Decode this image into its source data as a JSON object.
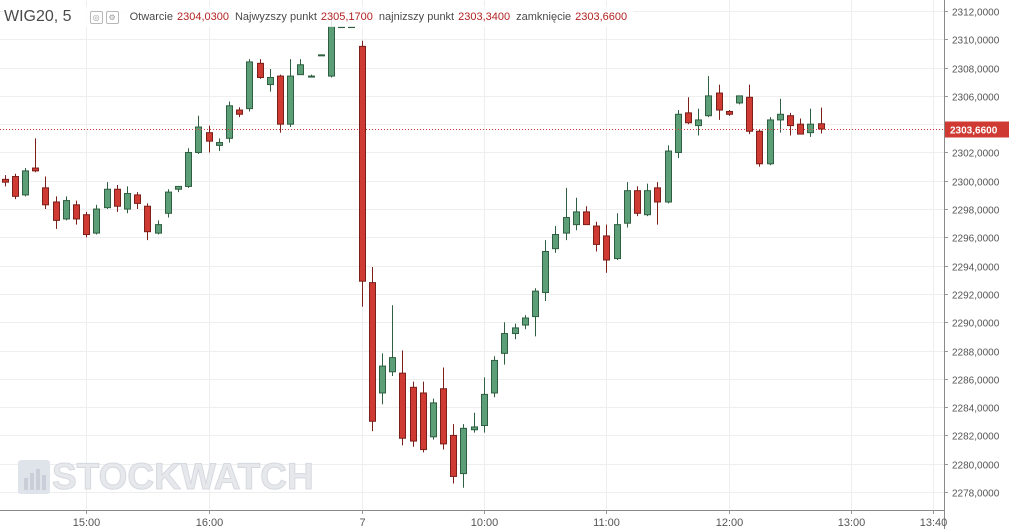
{
  "header": {
    "symbol": "WIG20, 5",
    "open_label": "Otwarcie",
    "open_value": "2304,0300",
    "high_label": "Najwyzszy punkt",
    "high_value": "2305,1700",
    "low_label": "najnizszy punkt",
    "low_value": "2303,3400",
    "close_label": "zamknięcie",
    "close_value": "2303,6600"
  },
  "watermark": "STOCKWATCH",
  "colors": {
    "up": "#5b9e77",
    "down": "#cf3b33",
    "grid": "#eeeeee",
    "last_price": "#cf3b33"
  },
  "chart_data": {
    "type": "candlestick",
    "ylim": [
      2277,
      2313
    ],
    "yticks": [
      2278,
      2280,
      2282,
      2284,
      2286,
      2288,
      2290,
      2292,
      2294,
      2296,
      2298,
      2300,
      2302,
      2304,
      2306,
      2308,
      2310,
      2312
    ],
    "ytick_labels": [
      "2278,0000",
      "2280,0000",
      "2282,0000",
      "2284,0000",
      "2286,0000",
      "2288,0000",
      "2290,0000",
      "2292,0000",
      "2294,0000",
      "2296,0000",
      "2298,0000",
      "2300,0000",
      "2302,0000",
      "2304,0000",
      "2306,0000",
      "2308,0000",
      "2310,0000",
      "2312,0000"
    ],
    "x_tick_labels": [
      {
        "label": "15:00",
        "bar": 8
      },
      {
        "label": "16:00",
        "bar": 20
      },
      {
        "label": "7",
        "bar": 35
      },
      {
        "label": "10:00",
        "bar": 47
      },
      {
        "label": "11:00",
        "bar": 59
      },
      {
        "label": "12:00",
        "bar": 71
      },
      {
        "label": "13:00",
        "bar": 83
      },
      {
        "label": "13:40",
        "bar": 91
      }
    ],
    "last_price": 2303.66,
    "last_price_label": "2303,6600",
    "candles": [
      {
        "o": 2300.1,
        "h": 2300.4,
        "l": 2299.6,
        "c": 2299.9
      },
      {
        "o": 2300.3,
        "h": 2300.5,
        "l": 2298.7,
        "c": 2298.9
      },
      {
        "o": 2299.0,
        "h": 2300.9,
        "l": 2298.9,
        "c": 2300.7
      },
      {
        "o": 2300.9,
        "h": 2303.0,
        "l": 2300.6,
        "c": 2300.7
      },
      {
        "o": 2299.5,
        "h": 2300.3,
        "l": 2298.0,
        "c": 2298.3
      },
      {
        "o": 2298.5,
        "h": 2298.9,
        "l": 2296.6,
        "c": 2297.2
      },
      {
        "o": 2297.3,
        "h": 2298.9,
        "l": 2297.2,
        "c": 2298.6
      },
      {
        "o": 2298.3,
        "h": 2298.6,
        "l": 2296.9,
        "c": 2297.3
      },
      {
        "o": 2297.6,
        "h": 2297.8,
        "l": 2296.0,
        "c": 2296.2
      },
      {
        "o": 2296.3,
        "h": 2298.3,
        "l": 2296.2,
        "c": 2298.0
      },
      {
        "o": 2298.1,
        "h": 2299.9,
        "l": 2298.0,
        "c": 2299.4
      },
      {
        "o": 2299.4,
        "h": 2299.7,
        "l": 2297.8,
        "c": 2298.2
      },
      {
        "o": 2298.0,
        "h": 2299.6,
        "l": 2297.7,
        "c": 2299.1
      },
      {
        "o": 2299.0,
        "h": 2299.2,
        "l": 2298.0,
        "c": 2298.4
      },
      {
        "o": 2298.2,
        "h": 2298.4,
        "l": 2295.8,
        "c": 2296.4
      },
      {
        "o": 2296.3,
        "h": 2297.2,
        "l": 2296.2,
        "c": 2296.9
      },
      {
        "o": 2297.7,
        "h": 2299.4,
        "l": 2297.4,
        "c": 2299.2
      },
      {
        "o": 2299.4,
        "h": 2299.6,
        "l": 2299.2,
        "c": 2299.6
      },
      {
        "o": 2299.6,
        "h": 2302.3,
        "l": 2299.5,
        "c": 2302.0
      },
      {
        "o": 2302.0,
        "h": 2304.6,
        "l": 2301.9,
        "c": 2303.8
      },
      {
        "o": 2303.4,
        "h": 2303.9,
        "l": 2302.0,
        "c": 2302.8
      },
      {
        "o": 2302.5,
        "h": 2303.0,
        "l": 2302.1,
        "c": 2302.7
      },
      {
        "o": 2303.0,
        "h": 2305.6,
        "l": 2302.7,
        "c": 2305.3
      },
      {
        "o": 2305.0,
        "h": 2305.2,
        "l": 2304.5,
        "c": 2304.7
      },
      {
        "o": 2305.1,
        "h": 2308.6,
        "l": 2304.9,
        "c": 2308.4
      },
      {
        "o": 2308.3,
        "h": 2308.6,
        "l": 2307.2,
        "c": 2307.3
      },
      {
        "o": 2306.8,
        "h": 2307.9,
        "l": 2306.3,
        "c": 2307.3
      },
      {
        "o": 2307.4,
        "h": 2307.5,
        "l": 2303.4,
        "c": 2304.0
      },
      {
        "o": 2304.0,
        "h": 2308.6,
        "l": 2303.8,
        "c": 2307.4
      },
      {
        "o": 2307.5,
        "h": 2308.6,
        "l": 2307.5,
        "c": 2308.2
      },
      {
        "o": 2307.4,
        "h": 2307.5,
        "l": 2307.4,
        "c": 2307.4
      },
      {
        "o": 2308.9,
        "h": 2308.9,
        "l": 2308.9,
        "c": 2308.9
      },
      {
        "o": 2307.4,
        "h": 2311.5,
        "l": 2307.3,
        "c": 2310.9
      },
      {
        "o": 2310.9,
        "h": 2310.9,
        "l": 2310.9,
        "c": 2310.9
      },
      {
        "o": 2310.9,
        "h": 2310.9,
        "l": 2310.9,
        "c": 2310.9
      },
      {
        "o": 2309.5,
        "h": 2309.9,
        "l": 2291.1,
        "c": 2292.9
      },
      {
        "o": 2292.8,
        "h": 2293.9,
        "l": 2282.3,
        "c": 2283.0
      },
      {
        "o": 2285.0,
        "h": 2287.8,
        "l": 2284.2,
        "c": 2286.9
      },
      {
        "o": 2286.5,
        "h": 2291.2,
        "l": 2286.2,
        "c": 2287.5
      },
      {
        "o": 2286.4,
        "h": 2288.0,
        "l": 2281.3,
        "c": 2281.8
      },
      {
        "o": 2285.4,
        "h": 2285.8,
        "l": 2281.2,
        "c": 2281.6
      },
      {
        "o": 2285.0,
        "h": 2285.8,
        "l": 2280.8,
        "c": 2281.0
      },
      {
        "o": 2281.9,
        "h": 2284.6,
        "l": 2281.7,
        "c": 2284.3
      },
      {
        "o": 2285.3,
        "h": 2286.8,
        "l": 2281.0,
        "c": 2281.4
      },
      {
        "o": 2282.0,
        "h": 2282.8,
        "l": 2278.6,
        "c": 2279.1
      },
      {
        "o": 2279.3,
        "h": 2282.8,
        "l": 2278.3,
        "c": 2282.5
      },
      {
        "o": 2282.4,
        "h": 2283.6,
        "l": 2282.2,
        "c": 2282.6
      },
      {
        "o": 2282.7,
        "h": 2286.1,
        "l": 2282.2,
        "c": 2284.9
      },
      {
        "o": 2285.0,
        "h": 2287.6,
        "l": 2284.7,
        "c": 2287.3
      },
      {
        "o": 2287.8,
        "h": 2290.0,
        "l": 2287.0,
        "c": 2289.2
      },
      {
        "o": 2289.2,
        "h": 2289.9,
        "l": 2288.8,
        "c": 2289.6
      },
      {
        "o": 2289.8,
        "h": 2290.5,
        "l": 2289.5,
        "c": 2290.3
      },
      {
        "o": 2290.4,
        "h": 2292.4,
        "l": 2289.0,
        "c": 2292.2
      },
      {
        "o": 2292.1,
        "h": 2295.8,
        "l": 2291.5,
        "c": 2295.0
      },
      {
        "o": 2295.2,
        "h": 2296.8,
        "l": 2294.9,
        "c": 2296.2
      },
      {
        "o": 2296.3,
        "h": 2299.5,
        "l": 2295.8,
        "c": 2297.4
      },
      {
        "o": 2296.9,
        "h": 2298.8,
        "l": 2296.5,
        "c": 2297.8
      },
      {
        "o": 2297.8,
        "h": 2298.2,
        "l": 2296.9,
        "c": 2296.9
      },
      {
        "o": 2296.8,
        "h": 2297.1,
        "l": 2295.0,
        "c": 2295.5
      },
      {
        "o": 2296.1,
        "h": 2296.9,
        "l": 2293.5,
        "c": 2294.4
      },
      {
        "o": 2294.5,
        "h": 2297.7,
        "l": 2294.4,
        "c": 2296.9
      },
      {
        "o": 2297.0,
        "h": 2299.9,
        "l": 2296.7,
        "c": 2299.3
      },
      {
        "o": 2299.3,
        "h": 2299.6,
        "l": 2297.5,
        "c": 2297.7
      },
      {
        "o": 2297.6,
        "h": 2299.8,
        "l": 2297.5,
        "c": 2299.3
      },
      {
        "o": 2299.5,
        "h": 2299.9,
        "l": 2296.9,
        "c": 2298.5
      },
      {
        "o": 2298.5,
        "h": 2302.5,
        "l": 2298.4,
        "c": 2302.1
      },
      {
        "o": 2302.0,
        "h": 2305.0,
        "l": 2301.6,
        "c": 2304.7
      },
      {
        "o": 2304.8,
        "h": 2305.9,
        "l": 2304.0,
        "c": 2304.1
      },
      {
        "o": 2303.9,
        "h": 2305.1,
        "l": 2303.2,
        "c": 2304.3
      },
      {
        "o": 2304.6,
        "h": 2307.4,
        "l": 2304.5,
        "c": 2306.0
      },
      {
        "o": 2306.2,
        "h": 2306.8,
        "l": 2304.3,
        "c": 2305.0
      },
      {
        "o": 2304.9,
        "h": 2305.0,
        "l": 2304.6,
        "c": 2304.7
      },
      {
        "o": 2305.5,
        "h": 2305.9,
        "l": 2305.4,
        "c": 2306.0
      },
      {
        "o": 2305.9,
        "h": 2306.8,
        "l": 2303.3,
        "c": 2303.5
      },
      {
        "o": 2303.5,
        "h": 2303.6,
        "l": 2301.0,
        "c": 2301.2
      },
      {
        "o": 2301.2,
        "h": 2304.5,
        "l": 2301.1,
        "c": 2304.3
      },
      {
        "o": 2304.3,
        "h": 2305.8,
        "l": 2303.4,
        "c": 2304.7
      },
      {
        "o": 2304.6,
        "h": 2304.8,
        "l": 2303.2,
        "c": 2303.9
      },
      {
        "o": 2304.0,
        "h": 2304.4,
        "l": 2303.3,
        "c": 2303.3
      },
      {
        "o": 2303.4,
        "h": 2305.1,
        "l": 2303.1,
        "c": 2304.0
      },
      {
        "o": 2304.03,
        "h": 2305.17,
        "l": 2303.34,
        "c": 2303.66
      }
    ]
  }
}
